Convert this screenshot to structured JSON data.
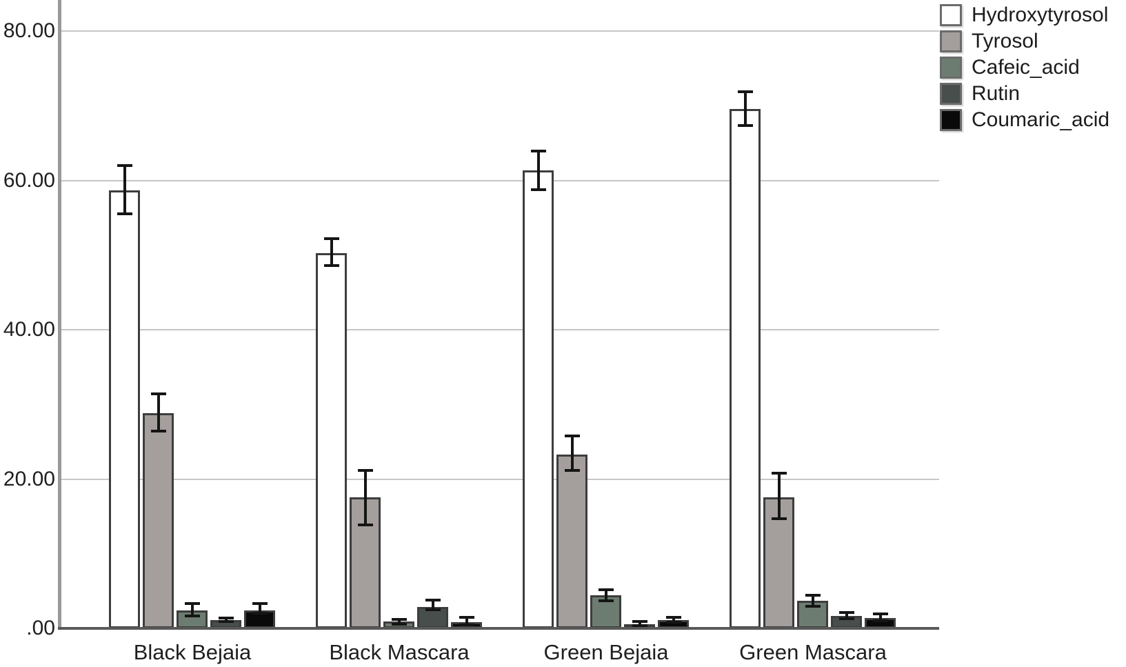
{
  "chart_data": {
    "type": "bar",
    "title": "",
    "xlabel": "",
    "ylabel": "",
    "grid": true,
    "error_bars": true,
    "legend_position": "top-right",
    "ylim": [
      0,
      84.2
    ],
    "categories": [
      "Black Bejaia",
      "Black Mascara",
      "Green Bejaia",
      "Green Mascara"
    ],
    "y_ticks": [
      {
        "value": 80,
        "label": "80.00"
      },
      {
        "value": 60,
        "label": "60.00"
      },
      {
        "value": 40,
        "label": "40.00"
      },
      {
        "value": 20,
        "label": "20.00"
      },
      {
        "value": 0,
        "label": ".00"
      }
    ],
    "series": [
      {
        "name": "Hydroxytyrosol",
        "color": "#ffffff",
        "values": [
          58.7,
          50.3,
          61.4,
          69.6
        ],
        "error_low": [
          55.5,
          48.6,
          58.8,
          67.4
        ],
        "error_high": [
          62.0,
          52.2,
          64.0,
          71.9
        ]
      },
      {
        "name": "Tyrosol",
        "color": "#a49f9d",
        "values": [
          28.8,
          17.6,
          23.3,
          17.6
        ],
        "error_low": [
          26.4,
          13.9,
          21.2,
          14.7
        ],
        "error_high": [
          31.4,
          21.2,
          25.8,
          20.8
        ]
      },
      {
        "name": "Cafeic_acid",
        "color": "#6d7c70",
        "values": [
          2.4,
          0.9,
          4.4,
          3.7
        ],
        "error_low": [
          1.7,
          0.6,
          3.7,
          3.0
        ],
        "error_high": [
          3.3,
          1.2,
          5.2,
          4.4
        ]
      },
      {
        "name": "Rutin",
        "color": "#474e4b",
        "values": [
          1.1,
          2.9,
          0.6,
          1.7
        ],
        "error_low": [
          0.9,
          2.5,
          0.4,
          1.3
        ],
        "error_high": [
          1.4,
          3.8,
          0.9,
          2.1
        ]
      },
      {
        "name": "Coumaric_acid",
        "color": "#0a0a0a",
        "values": [
          2.4,
          0.8,
          1.1,
          1.4
        ],
        "error_low": [
          2.0,
          0.5,
          0.8,
          1.0
        ],
        "error_high": [
          3.3,
          1.5,
          1.5,
          1.9
        ]
      }
    ],
    "colors": {
      "background": "#ffffff",
      "gridline": "#c6c6c6",
      "y_axis": "#999999",
      "x_axis": "#595959",
      "bar_border": "#3d3d3d",
      "error_bar": "#151515",
      "text": "#1f1f1f"
    }
  }
}
